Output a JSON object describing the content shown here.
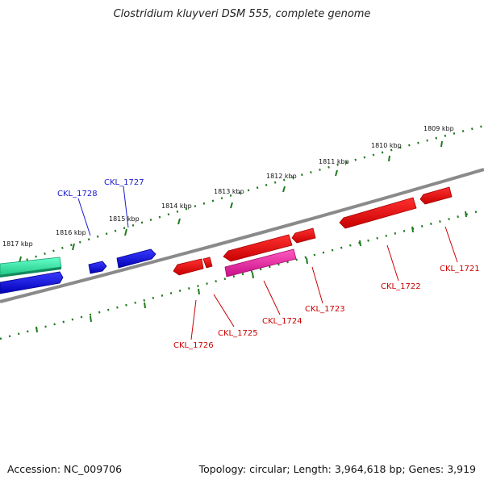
{
  "title": "Clostridium kluyveri DSM 555, complete genome",
  "accession": "Accession: NC_009706",
  "topology": "Topology: circular; Length: 3,964,618 bp; Genes: 3,919",
  "colors": {
    "backbone": "#808080",
    "tick": "#1f7a1f",
    "forward_gene": "#0000e6",
    "reverse_gene": "#ee0000",
    "gene_label_forward": "#1a1acc",
    "gene_label_reverse": "#cc0000",
    "teal_feature": "#33e6a0",
    "magenta_feature": "#e6199e"
  },
  "kbp_labels": [
    {
      "label": "1809 kbp"
    },
    {
      "label": "1810 kbp"
    },
    {
      "label": "1811 kbp"
    },
    {
      "label": "1812 kbp"
    },
    {
      "label": "1813 kbp"
    },
    {
      "label": "1814 kbp"
    },
    {
      "label": "1815 kbp"
    },
    {
      "label": "1816 kbp"
    },
    {
      "label": "1817 kbp"
    }
  ],
  "genes": [
    {
      "name": "CKL_1721",
      "strand": "reverse"
    },
    {
      "name": "CKL_1722",
      "strand": "reverse"
    },
    {
      "name": "CKL_1723",
      "strand": "reverse"
    },
    {
      "name": "CKL_1724",
      "strand": "reverse"
    },
    {
      "name": "CKL_1725",
      "strand": "reverse"
    },
    {
      "name": "CKL_1726",
      "strand": "reverse"
    },
    {
      "name": "CKL_1727",
      "strand": "forward"
    },
    {
      "name": "CKL_1728",
      "strand": "forward"
    }
  ]
}
